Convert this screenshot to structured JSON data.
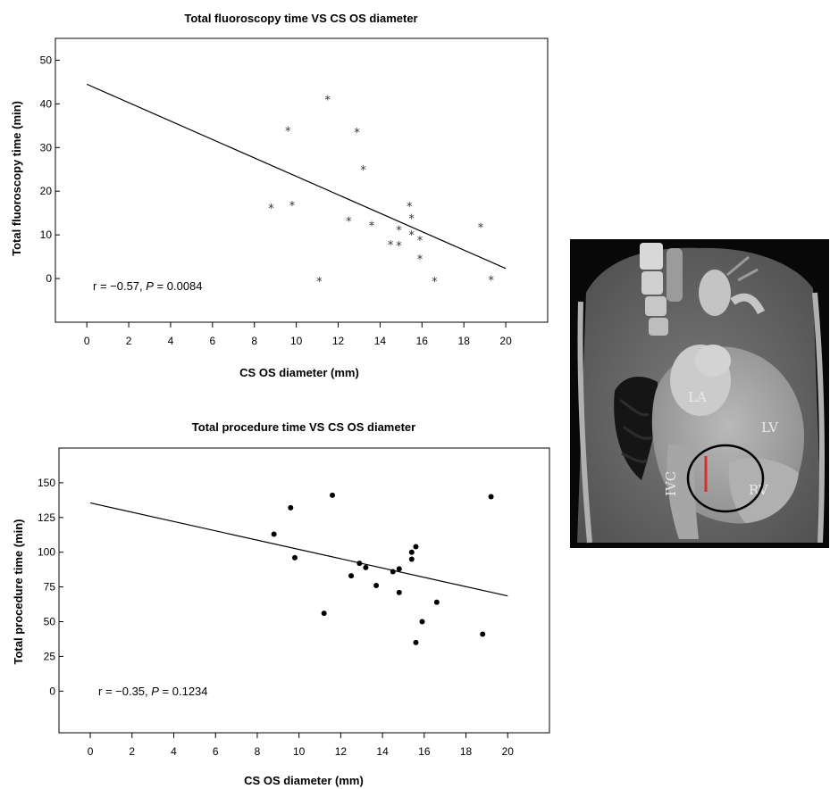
{
  "chart_data": [
    {
      "type": "scatter",
      "title": "Total fluoroscopy time VS CS OS diameter",
      "xlabel": "CS OS diameter (mm)",
      "ylabel": "Total fluoroscopy time (min)",
      "xlim": [
        -1.5,
        22
      ],
      "ylim": [
        -10,
        55
      ],
      "x_ticks": [
        0,
        2,
        4,
        6,
        8,
        10,
        12,
        14,
        16,
        18,
        20
      ],
      "y_ticks": [
        0,
        10,
        20,
        30,
        40,
        50
      ],
      "grid": false,
      "marker": "*",
      "annotation": {
        "prefix": "r = −0.57, ",
        "p_symbol": "P",
        "suffix": " = 0.0084"
      },
      "fit_line": {
        "x": [
          0,
          20
        ],
        "y": [
          44.5,
          2.3
        ]
      },
      "points": [
        {
          "x": 8.8,
          "y": 16.8
        },
        {
          "x": 9.6,
          "y": 34.5
        },
        {
          "x": 9.8,
          "y": 17.4
        },
        {
          "x": 11.1,
          "y": 0
        },
        {
          "x": 11.5,
          "y": 41.6
        },
        {
          "x": 12.5,
          "y": 13.8
        },
        {
          "x": 12.9,
          "y": 34.1
        },
        {
          "x": 13.2,
          "y": 25.6
        },
        {
          "x": 13.6,
          "y": 12.8
        },
        {
          "x": 14.5,
          "y": 8.4
        },
        {
          "x": 14.9,
          "y": 8.2
        },
        {
          "x": 14.9,
          "y": 11.8
        },
        {
          "x": 15.4,
          "y": 17.2
        },
        {
          "x": 15.5,
          "y": 14.4
        },
        {
          "x": 15.5,
          "y": 10.6
        },
        {
          "x": 15.9,
          "y": 9.4
        },
        {
          "x": 15.9,
          "y": 5.1
        },
        {
          "x": 16.6,
          "y": 0
        },
        {
          "x": 18.8,
          "y": 12.4
        },
        {
          "x": 19.3,
          "y": 0.3
        }
      ]
    },
    {
      "type": "scatter",
      "title": "Total procedure time VS CS OS diameter",
      "xlabel": "CS OS  diameter (mm)",
      "ylabel": "Total procedure time (min)",
      "xlim": [
        -1.5,
        22
      ],
      "ylim": [
        -30,
        175
      ],
      "x_ticks": [
        0,
        2,
        4,
        6,
        8,
        10,
        12,
        14,
        16,
        18,
        20
      ],
      "y_ticks": [
        0,
        25,
        50,
        75,
        100,
        125,
        150
      ],
      "grid": false,
      "marker": "dot",
      "annotation": {
        "prefix": "r = −0.35, ",
        "p_symbol": "P",
        "suffix": " = 0.1234"
      },
      "fit_line": {
        "x": [
          0,
          20
        ],
        "y": [
          135.5,
          68.5
        ]
      },
      "points": [
        {
          "x": 8.8,
          "y": 113
        },
        {
          "x": 9.6,
          "y": 132
        },
        {
          "x": 9.8,
          "y": 96
        },
        {
          "x": 11.2,
          "y": 56
        },
        {
          "x": 11.6,
          "y": 141
        },
        {
          "x": 12.5,
          "y": 83
        },
        {
          "x": 12.9,
          "y": 92
        },
        {
          "x": 13.2,
          "y": 89
        },
        {
          "x": 13.7,
          "y": 76
        },
        {
          "x": 14.5,
          "y": 86
        },
        {
          "x": 14.8,
          "y": 88
        },
        {
          "x": 14.8,
          "y": 71
        },
        {
          "x": 15.4,
          "y": 95
        },
        {
          "x": 15.4,
          "y": 100
        },
        {
          "x": 15.6,
          "y": 104
        },
        {
          "x": 15.6,
          "y": 35
        },
        {
          "x": 15.9,
          "y": 50
        },
        {
          "x": 16.6,
          "y": 64
        },
        {
          "x": 18.8,
          "y": 41
        },
        {
          "x": 19.2,
          "y": 140
        }
      ]
    }
  ],
  "ct_image": {
    "labels": {
      "la": "LA",
      "lv": "LV",
      "ivc": "IVC",
      "rv": "RV"
    },
    "colors": {
      "marker_line": "#d3322b",
      "ellipse": "#000000"
    }
  }
}
